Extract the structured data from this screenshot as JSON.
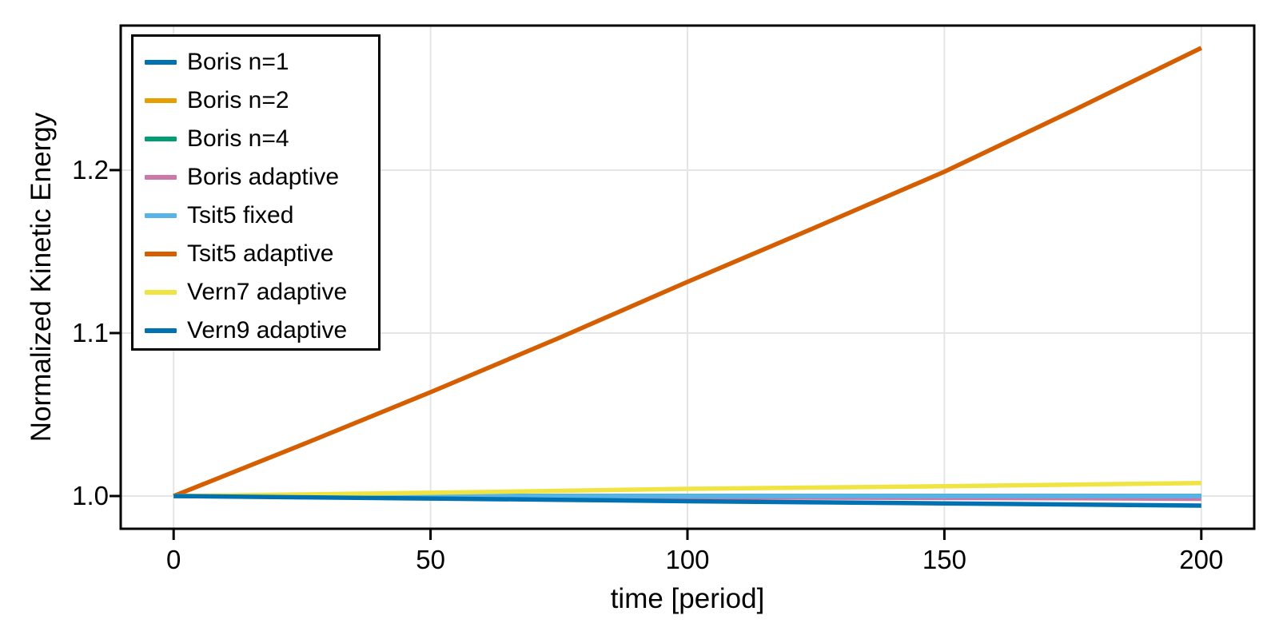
{
  "figure": {
    "background": "#FFFFFF",
    "frame_color": "#000000",
    "grid_color": "#E5E5E5",
    "tick_color": "#000000",
    "text_color": "#000000"
  },
  "chart_data": {
    "type": "line",
    "title": "",
    "xlabel": "time [period]",
    "ylabel": "Normalized Kinetic Energy",
    "xlim": [
      -10.3,
      210.3
    ],
    "ylim": [
      0.9799,
      1.2887
    ],
    "xticks": [
      0,
      50,
      100,
      150,
      200
    ],
    "xtick_labels": [
      "0",
      "50",
      "100",
      "150",
      "200"
    ],
    "yticks": [
      1.0,
      1.1,
      1.2
    ],
    "ytick_labels": [
      "1.0",
      "1.1",
      "1.2"
    ],
    "grid": true,
    "legend_position": "top-left",
    "line_width": 5.5,
    "x": [
      0,
      25,
      50,
      75,
      100,
      125,
      150,
      175,
      200
    ],
    "series": [
      {
        "name": "Boris n=1",
        "color": "#0072B2",
        "values": [
          1.0,
          1.0,
          1.0,
          1.0,
          1.0,
          1.0,
          1.0,
          1.0,
          1.0
        ]
      },
      {
        "name": "Boris n=2",
        "color": "#E69F00",
        "values": [
          1.0,
          1.0,
          1.0,
          1.0,
          1.0,
          1.0,
          1.0,
          1.0,
          1.0
        ]
      },
      {
        "name": "Boris n=4",
        "color": "#009E73",
        "values": [
          1.0,
          1.0,
          1.0,
          1.0,
          1.0,
          1.0,
          1.0,
          1.0,
          1.0
        ]
      },
      {
        "name": "Boris adaptive",
        "color": "#CC79A7",
        "values": [
          1.0,
          0.9998,
          0.9996,
          0.9994,
          0.9992,
          0.999,
          0.9988,
          0.9986,
          0.9983
        ]
      },
      {
        "name": "Tsit5 fixed",
        "color": "#56B4E9",
        "values": [
          1.0,
          1.0,
          1.0,
          1.0,
          1.0,
          1.0,
          1.0,
          1.0,
          1.0
        ]
      },
      {
        "name": "Tsit5 adaptive",
        "color": "#D55E00",
        "values": [
          1.0,
          1.0315,
          1.0637,
          1.097,
          1.1314,
          1.165,
          1.199,
          1.2365,
          1.275
        ]
      },
      {
        "name": "Vern7 adaptive",
        "color": "#F0E442",
        "values": [
          1.0,
          1.001,
          1.002,
          1.0032,
          1.0044,
          1.0052,
          1.006,
          1.007,
          1.008
        ]
      },
      {
        "name": "Vern9 adaptive",
        "color": "#0072B2",
        "values": [
          1.0,
          0.9992,
          0.9985,
          0.9977,
          0.9968,
          0.9961,
          0.9955,
          0.9948,
          0.9941
        ]
      }
    ]
  }
}
